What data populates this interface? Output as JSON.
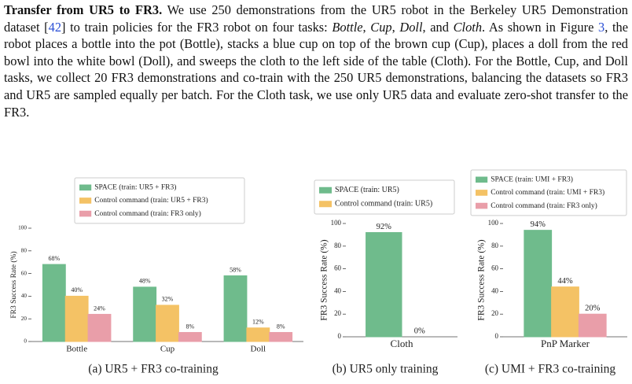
{
  "paragraph": {
    "runs": [
      {
        "text": "Transfer from UR5 to FR3.",
        "style": "bold"
      },
      {
        "text": " We use 250 demonstrations from the UR5 robot in the Berkeley UR5 Demonstration dataset ["
      },
      {
        "text": "42",
        "style": "link"
      },
      {
        "text": "] to train policies for the FR3 robot on four tasks: "
      },
      {
        "text": "Bottle",
        "style": "italic"
      },
      {
        "text": ", "
      },
      {
        "text": "Cup",
        "style": "italic"
      },
      {
        "text": ", "
      },
      {
        "text": "Doll",
        "style": "italic"
      },
      {
        "text": ", and "
      },
      {
        "text": "Cloth",
        "style": "italic"
      },
      {
        "text": ". As shown in Figure "
      },
      {
        "text": "3",
        "style": "link"
      },
      {
        "text": ", the robot places a bottle into the pot (Bottle), stacks a blue cup on top of the brown cup (Cup), places a doll from the red bowl into the white bowl (Doll), and sweeps the cloth to the left side of the table (Cloth). For the Bottle, Cup, and Doll tasks, we collect 20 FR3 demonstrations and co-train with the 250 UR5 demonstrations, balancing the datasets so FR3 and UR5 are sampled equally per batch. For the Cloth task, we use only UR5 data and evaluate zero-shot transfer to the FR3."
      }
    ]
  },
  "chart_data": [
    {
      "type": "bar",
      "caption": "(a) UR5 + FR3 co-training",
      "ylabel": "FR3 Success Rate (%)",
      "categories": [
        "Bottle",
        "Cup",
        "Doll"
      ],
      "series": [
        {
          "name": "SPACE (train: UR5 + FR3)",
          "color": "#6fbb8c",
          "values": [
            68,
            48,
            58
          ],
          "value_labels": [
            "68%",
            "48%",
            "58%"
          ]
        },
        {
          "name": "Control command (train: UR5 + FR3)",
          "color": "#f4c265",
          "values": [
            40,
            32,
            12
          ],
          "value_labels": [
            "40%",
            "32%",
            "12%"
          ]
        },
        {
          "name": "Control command (train: FR3 only)",
          "color": "#e99ea9",
          "values": [
            24,
            8,
            8
          ],
          "value_labels": [
            "24%",
            "8%",
            "8%"
          ]
        }
      ],
      "ylim": [
        0,
        100
      ],
      "yticks": [
        0,
        20,
        40,
        60,
        80,
        100
      ]
    },
    {
      "type": "bar",
      "caption": "(b) UR5 only training",
      "ylabel": "FR3 Success Rate (%)",
      "categories": [
        "Cloth"
      ],
      "series": [
        {
          "name": "SPACE (train: UR5)",
          "color": "#6fbb8c",
          "values": [
            92
          ],
          "value_labels": [
            "92%"
          ]
        },
        {
          "name": "Control command (train: UR5)",
          "color": "#f4c265",
          "values": [
            0
          ],
          "value_labels": [
            "0%"
          ]
        }
      ],
      "ylim": [
        0,
        100
      ],
      "yticks": [
        0,
        20,
        40,
        60,
        80,
        100
      ]
    },
    {
      "type": "bar",
      "caption": "(c) UMI + FR3 co-training",
      "ylabel": "FR3 Success Rate (%)",
      "categories": [
        "PnP Marker"
      ],
      "series": [
        {
          "name": "SPACE (train: UMI + FR3)",
          "color": "#6fbb8c",
          "values": [
            94
          ],
          "value_labels": [
            "94%"
          ]
        },
        {
          "name": "Control command (train: UMI + FR3)",
          "color": "#f4c265",
          "values": [
            44
          ],
          "value_labels": [
            "44%"
          ]
        },
        {
          "name": "Control command (train: FR3 only)",
          "color": "#e99ea9",
          "values": [
            20
          ],
          "value_labels": [
            "20%"
          ]
        }
      ],
      "ylim": [
        0,
        100
      ],
      "yticks": [
        0,
        20,
        40,
        60,
        80,
        100
      ]
    }
  ]
}
